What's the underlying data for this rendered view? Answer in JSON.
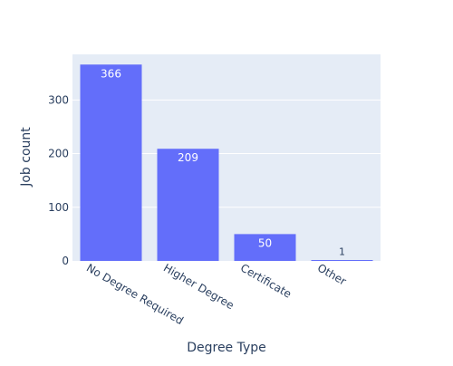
{
  "chart_data": {
    "type": "bar",
    "title": "",
    "xlabel": "Degree Type",
    "ylabel": "Job count",
    "categories": [
      "No Degree Required",
      "Higher Degree",
      "Certificate",
      "Other"
    ],
    "values": [
      366,
      209,
      50,
      1
    ],
    "data_labels": [
      "366",
      "209",
      "50",
      "1"
    ],
    "yticks": [
      0,
      100,
      200,
      300
    ],
    "ylim": [
      0,
      385
    ],
    "grid": true,
    "legend": "none",
    "colors": {
      "bar": "#636efa",
      "plot_background": "#e5ecf6",
      "gridline": "#ffffff",
      "text": "#2a3f5f",
      "label_inside": "#ffffff",
      "label_outside": "#2a3f5f"
    }
  }
}
